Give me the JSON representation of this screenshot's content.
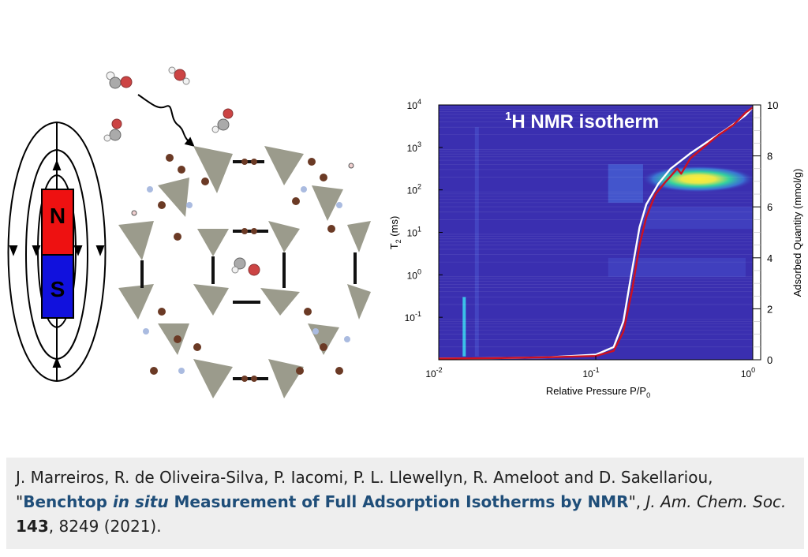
{
  "magnet": {
    "north_label": "N",
    "south_label": "S"
  },
  "chart_data": {
    "type": "heatmap",
    "title_prefix": "1",
    "title_element": "H",
    "title_rest": " NMR isotherm",
    "xlabel_main": "Relative Pressure P/P",
    "xlabel_sub": "0",
    "ylabel_main": "T",
    "ylabel_sub": "2",
    "ylabel_unit": " (ms)",
    "y2label": "Adsorbed Quantity (mmol/g)",
    "x_scale": "log",
    "xlim": [
      0.01,
      1
    ],
    "x_ticks": [
      {
        "base": "10",
        "exp": "-2"
      },
      {
        "base": "10",
        "exp": "-1"
      },
      {
        "base": "10",
        "exp": "0"
      }
    ],
    "y_scale": "log",
    "ylim": [
      0.01,
      10000
    ],
    "y_ticks": [
      {
        "base": "10",
        "exp": "-1"
      },
      {
        "base": "10",
        "exp": "0"
      },
      {
        "base": "10",
        "exp": "1"
      },
      {
        "base": "10",
        "exp": "2"
      },
      {
        "base": "10",
        "exp": "3"
      },
      {
        "base": "10",
        "exp": "4"
      }
    ],
    "y2lim": [
      0,
      10
    ],
    "y2_ticks": [
      "0",
      "2",
      "4",
      "6",
      "8",
      "10"
    ],
    "colors": {
      "background": "#3a2fb0",
      "white_curve": "#ffffff",
      "red_curve": "#cc1122"
    },
    "series": [
      {
        "color": "white",
        "x": [
          0.01,
          0.02,
          0.05,
          0.1,
          0.13,
          0.15,
          0.17,
          0.19,
          0.21,
          0.25,
          0.3,
          0.4,
          0.5,
          0.7,
          0.9,
          1.0
        ],
        "y": [
          0.05,
          0.06,
          0.1,
          0.2,
          0.5,
          1.5,
          3.5,
          5.2,
          6.1,
          6.9,
          7.5,
          8.1,
          8.5,
          9.1,
          9.6,
          9.9
        ]
      },
      {
        "color": "red",
        "x": [
          0.01,
          0.02,
          0.05,
          0.1,
          0.13,
          0.15,
          0.17,
          0.19,
          0.21,
          0.24,
          0.28,
          0.3,
          0.33,
          0.35,
          0.4,
          0.5,
          0.6,
          0.75,
          0.9,
          1.0
        ],
        "y": [
          0.05,
          0.06,
          0.1,
          0.15,
          0.35,
          1.1,
          2.7,
          4.5,
          5.6,
          6.5,
          7.0,
          7.2,
          7.5,
          7.3,
          7.9,
          8.4,
          8.8,
          9.2,
          9.7,
          9.9
        ]
      }
    ]
  },
  "caption": {
    "authors": "J. Marreiros, R. de Oliveira-Silva, P. Iacomi, P. L. Llewellyn, R. Ameloot and D. Sakellariou, \"",
    "title_a": "Benchtop ",
    "title_b": "in situ",
    "title_c": " Measurement of Full Adsorption Isotherms by NMR",
    "after_title": "\", ",
    "journal": "J. Am. Chem. Soc.",
    "sep": " ",
    "volume": "143",
    "rest": ", 8249 (2021)."
  }
}
